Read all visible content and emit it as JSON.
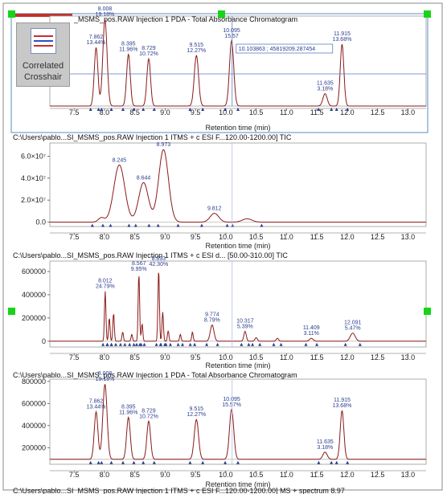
{
  "tool": {
    "label_line1": "Correlated",
    "label_line2": "Crosshair"
  },
  "crosshair": {
    "x": 10.103863,
    "y": 45819209.287454,
    "readout": "10.103863 ; 45819209.287454"
  },
  "chart_data": [
    {
      "type": "line",
      "title": "_MSMS_pos.RAW Injection 1  PDA - Total Absorbance Chromatogram",
      "xlabel": "Retention time (min)",
      "xlim": [
        7.1,
        13.3
      ],
      "xticks": [
        7.5,
        8.0,
        8.5,
        9.0,
        9.5,
        10.0,
        10.5,
        11.0,
        11.5,
        12.0,
        12.5,
        13.0
      ],
      "yticks": [],
      "ylim": [
        0,
        800000
      ],
      "baseline": 0,
      "peaks": [
        {
          "rt": 7.862,
          "height": 520000,
          "width": 0.03,
          "label": [
            "7.862",
            "13.44%"
          ]
        },
        {
          "rt": 8.008,
          "height": 770000,
          "width": 0.035,
          "label": [
            "8.008",
            "19.18%"
          ]
        },
        {
          "rt": 8.395,
          "height": 460000,
          "width": 0.03,
          "label": [
            "8.395",
            "11.96%"
          ]
        },
        {
          "rt": 8.729,
          "height": 420000,
          "width": 0.03,
          "label": [
            "8.729",
            "10.72%"
          ]
        },
        {
          "rt": 9.515,
          "height": 450000,
          "width": 0.035,
          "label": [
            "9.515",
            "12.27%"
          ]
        },
        {
          "rt": 10.095,
          "height": 580000,
          "width": 0.035,
          "label": [
            "10.095",
            "15.57"
          ]
        },
        {
          "rt": 11.635,
          "height": 110000,
          "width": 0.035,
          "label": [
            "11.635",
            "3.18%"
          ]
        },
        {
          "rt": 11.915,
          "height": 550000,
          "width": 0.03,
          "label": [
            "11.915",
            "13.68%"
          ]
        }
      ]
    },
    {
      "type": "line",
      "title": "C:\\Users\\pablo...SI_MSMS_pos.RAW Injection 1 ITMS + c ESI F...120.00-1200.00] TIC",
      "xlabel": "Retention time (min)",
      "xlim": [
        7.1,
        13.3
      ],
      "xticks": [
        7.5,
        8.0,
        8.5,
        9.0,
        9.5,
        10.0,
        10.5,
        11.0,
        11.5,
        12.0,
        12.5,
        13.0
      ],
      "ytick_labels": [
        {
          "value": 0,
          "label": "0.0"
        },
        {
          "value": 20000000,
          "label": "2.0×10⁷"
        },
        {
          "value": 40000000,
          "label": "4.0×10⁷"
        },
        {
          "value": 60000000,
          "label": "6.0×10⁷"
        }
      ],
      "ylim": [
        -4000000,
        72000000
      ],
      "baseline": 0,
      "peaks": [
        {
          "rt": 8.245,
          "height": 52000000,
          "width": 0.09,
          "label": [
            "8.245"
          ]
        },
        {
          "rt": 8.644,
          "height": 36000000,
          "width": 0.08,
          "label": [
            "8.644"
          ]
        },
        {
          "rt": 8.973,
          "height": 66000000,
          "width": 0.08,
          "label": [
            "8.973"
          ]
        },
        {
          "rt": 9.812,
          "height": 8000000,
          "width": 0.07,
          "label": [
            "9.812"
          ]
        },
        {
          "rt": 10.35,
          "height": 3000000,
          "width": 0.08,
          "label": null
        },
        {
          "rt": 7.95,
          "height": 4000000,
          "width": 0.05,
          "label": null
        }
      ]
    },
    {
      "type": "line",
      "title": "C:\\Users\\pablo...SI_MSMS_pos.RAW Injection 1 ITMS + c ESI d... [50.00-310.00] TIC",
      "xlabel": "Retention time (min)",
      "xlim": [
        7.1,
        13.3
      ],
      "xticks": [
        7.5,
        8.0,
        8.5,
        9.0,
        9.5,
        10.0,
        10.5,
        11.0,
        11.5,
        12.0,
        12.5,
        13.0
      ],
      "ytick_labels": [
        {
          "value": 0,
          "label": "0"
        },
        {
          "value": 200000,
          "label": "200000"
        },
        {
          "value": 400000,
          "label": "400000"
        },
        {
          "value": 600000,
          "label": "600000"
        }
      ],
      "ylim": [
        -50000,
        690000
      ],
      "baseline": 0,
      "peaks": [
        {
          "rt": 8.012,
          "height": 430000,
          "width": 0.012,
          "label": [
            "8.012",
            "24.79%"
          ]
        },
        {
          "rt": 8.08,
          "height": 200000,
          "width": 0.012,
          "label": null
        },
        {
          "rt": 8.15,
          "height": 240000,
          "width": 0.012,
          "label": null
        },
        {
          "rt": 8.3,
          "height": 80000,
          "width": 0.012,
          "label": null
        },
        {
          "rt": 8.45,
          "height": 60000,
          "width": 0.012,
          "label": null
        },
        {
          "rt": 8.567,
          "height": 580000,
          "width": 0.012,
          "label": [
            "8.567",
            "9.95%"
          ]
        },
        {
          "rt": 8.62,
          "height": 150000,
          "width": 0.012,
          "label": null
        },
        {
          "rt": 8.893,
          "height": 620000,
          "width": 0.012,
          "label": [
            "8.893",
            "42.30%"
          ]
        },
        {
          "rt": 8.96,
          "height": 250000,
          "width": 0.012,
          "label": null
        },
        {
          "rt": 9.05,
          "height": 90000,
          "width": 0.012,
          "label": null
        },
        {
          "rt": 9.25,
          "height": 60000,
          "width": 0.012,
          "label": null
        },
        {
          "rt": 9.45,
          "height": 80000,
          "width": 0.012,
          "label": null
        },
        {
          "rt": 9.774,
          "height": 140000,
          "width": 0.03,
          "label": [
            "9.774",
            "8.79%"
          ]
        },
        {
          "rt": 10.317,
          "height": 85000,
          "width": 0.02,
          "label": [
            "10.317",
            "5.39%"
          ]
        },
        {
          "rt": 10.5,
          "height": 30000,
          "width": 0.02,
          "label": null
        },
        {
          "rt": 10.85,
          "height": 25000,
          "width": 0.02,
          "label": null
        },
        {
          "rt": 11.409,
          "height": 25000,
          "width": 0.03,
          "label": [
            "11.409",
            "3.11%"
          ]
        },
        {
          "rt": 12.091,
          "height": 70000,
          "width": 0.04,
          "label": [
            "12.091",
            "5.47%"
          ]
        }
      ]
    },
    {
      "type": "line",
      "title": "C:\\Users\\pablo...SI_MSMS_pos.RAW Injection 1 PDA - Total Absorbance Chromatogram",
      "xlabel": "Retention time (min)",
      "xlim": [
        7.1,
        13.3
      ],
      "xticks": [
        7.5,
        8.0,
        8.5,
        9.0,
        9.5,
        10.0,
        10.5,
        11.0,
        11.5,
        12.0,
        12.5,
        13.0
      ],
      "ytick_labels": [
        {
          "value": 200000,
          "label": "200000"
        },
        {
          "value": 400000,
          "label": "400000"
        },
        {
          "value": 600000,
          "label": "600000"
        },
        {
          "value": 800000,
          "label": "800000"
        }
      ],
      "ylim": [
        50000,
        820000
      ],
      "baseline": 95000,
      "peaks": [
        {
          "rt": 7.862,
          "height": 430000,
          "width": 0.03,
          "label": [
            "7.862",
            "13.44%"
          ]
        },
        {
          "rt": 8.008,
          "height": 680000,
          "width": 0.035,
          "label": [
            "8.008",
            "19.18%"
          ]
        },
        {
          "rt": 8.395,
          "height": 380000,
          "width": 0.03,
          "label": [
            "8.395",
            "11.96%"
          ]
        },
        {
          "rt": 8.729,
          "height": 345000,
          "width": 0.03,
          "label": [
            "8.729",
            "10.72%"
          ]
        },
        {
          "rt": 9.515,
          "height": 360000,
          "width": 0.035,
          "label": [
            "9.515",
            "12.27%"
          ]
        },
        {
          "rt": 10.095,
          "height": 450000,
          "width": 0.035,
          "label": [
            "10.095",
            "15.57%"
          ]
        },
        {
          "rt": 11.635,
          "height": 65000,
          "width": 0.035,
          "label": [
            "11.635",
            "3.18%"
          ]
        },
        {
          "rt": 11.915,
          "height": 440000,
          "width": 0.03,
          "label": [
            "11.915",
            "13.68%"
          ]
        }
      ]
    }
  ],
  "footer_text": "C:\\Users\\pablo...SI_MSMS_pos.RAW Injection 1 ITMS + c ESI F...120.00-1200.00] MS + spectrum 8.97"
}
